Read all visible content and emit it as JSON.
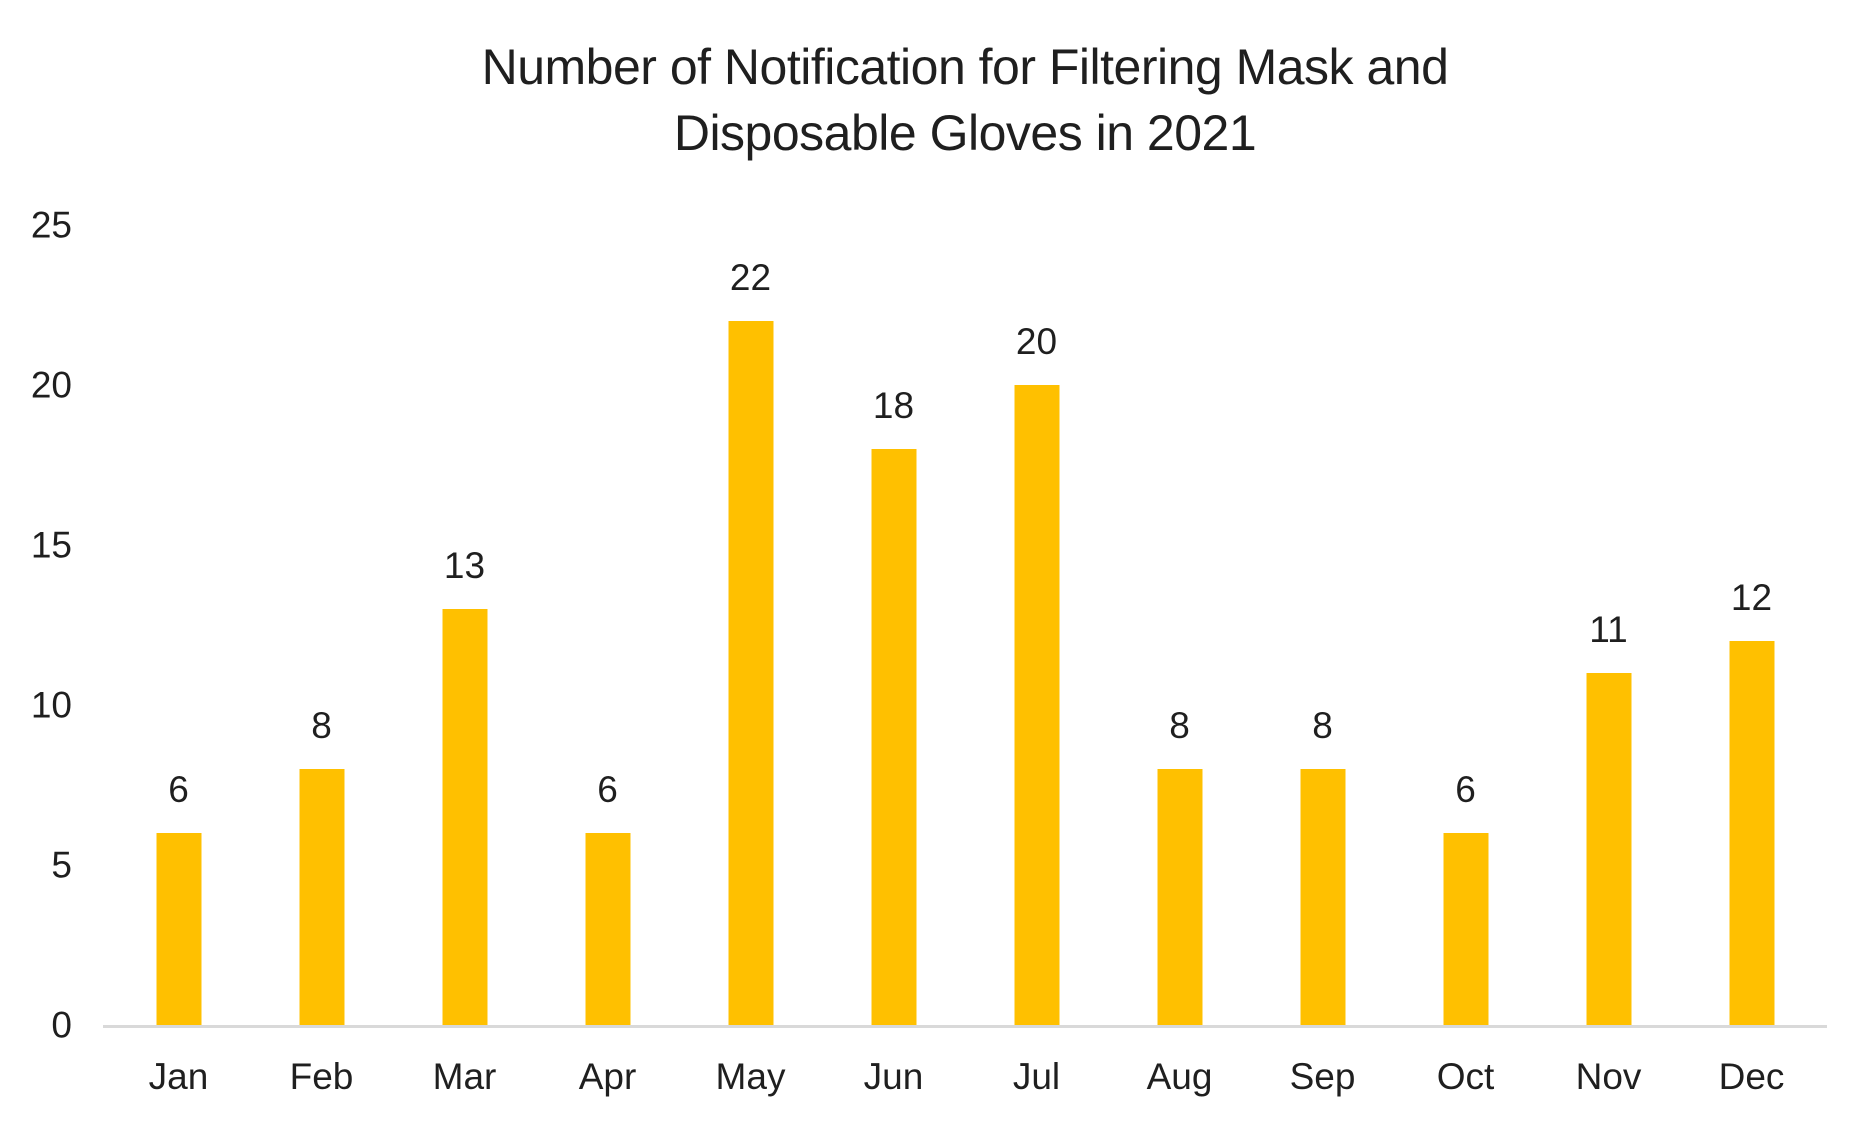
{
  "title": {
    "line1": "Number of Notification for Filtering Mask and",
    "line2": "Disposable Gloves in 2021"
  },
  "chart_data": {
    "type": "bar",
    "title": "Number of Notification for Filtering Mask and Disposable Gloves in 2021",
    "categories": [
      "Jan",
      "Feb",
      "Mar",
      "Apr",
      "May",
      "Jun",
      "Jul",
      "Aug",
      "Sep",
      "Oct",
      "Nov",
      "Dec"
    ],
    "values": [
      6,
      8,
      13,
      6,
      22,
      18,
      20,
      8,
      8,
      6,
      11,
      12
    ],
    "data_labels": [
      6,
      8,
      13,
      6,
      22,
      18,
      20,
      8,
      8,
      6,
      11,
      12
    ],
    "xlabel": "",
    "ylabel": "",
    "ylim": [
      0,
      25
    ],
    "yticks": [
      0,
      5,
      10,
      15,
      20,
      25
    ],
    "grid": false,
    "legend": false,
    "colors": {
      "bar": "#ffc000",
      "axis_line": "#d9d9d9",
      "text": "#1f1f1f"
    }
  }
}
